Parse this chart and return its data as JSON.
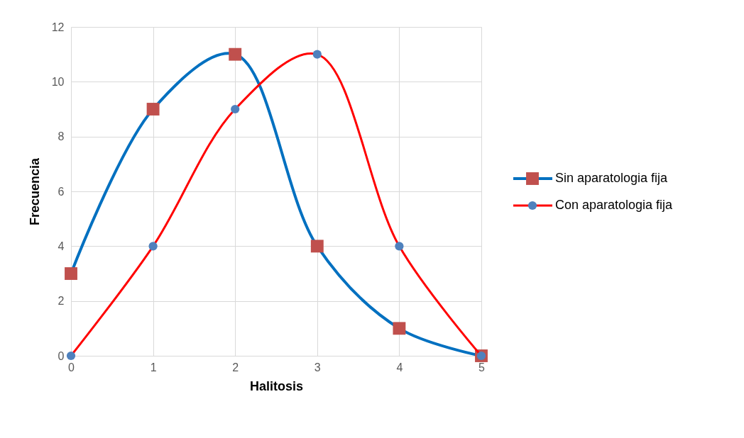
{
  "chart_data": {
    "type": "line",
    "xlabel": "Halitosis",
    "ylabel": "Frecuencia",
    "x": [
      0,
      1,
      2,
      3,
      4,
      5
    ],
    "series": [
      {
        "name": "Sin aparatologia fija",
        "color": "#0070c0",
        "colors": [
          "#c0504d",
          "#c0504d",
          "#c0504d",
          "#c0504d",
          "#c0504d",
          "#c0504d"
        ],
        "marker": "square",
        "values": [
          3,
          9,
          11,
          4,
          1,
          0
        ]
      },
      {
        "name": "Con aparatologia fija",
        "color": "#ff0000",
        "colors": [
          "#4f81bd",
          "#4f81bd",
          "#4f81bd",
          "#4f81bd",
          "#4f81bd",
          "#4f81bd"
        ],
        "marker": "circle",
        "values": [
          0,
          4,
          9,
          11,
          4,
          0
        ]
      }
    ],
    "xlim": [
      0,
      5
    ],
    "xticks": [
      0,
      1,
      2,
      3,
      4,
      5
    ],
    "ylim": [
      0,
      12
    ],
    "yticks": [
      0,
      2,
      4,
      6,
      8,
      10,
      12
    ],
    "grid": true,
    "legend": "right",
    "line_style": "solid"
  }
}
